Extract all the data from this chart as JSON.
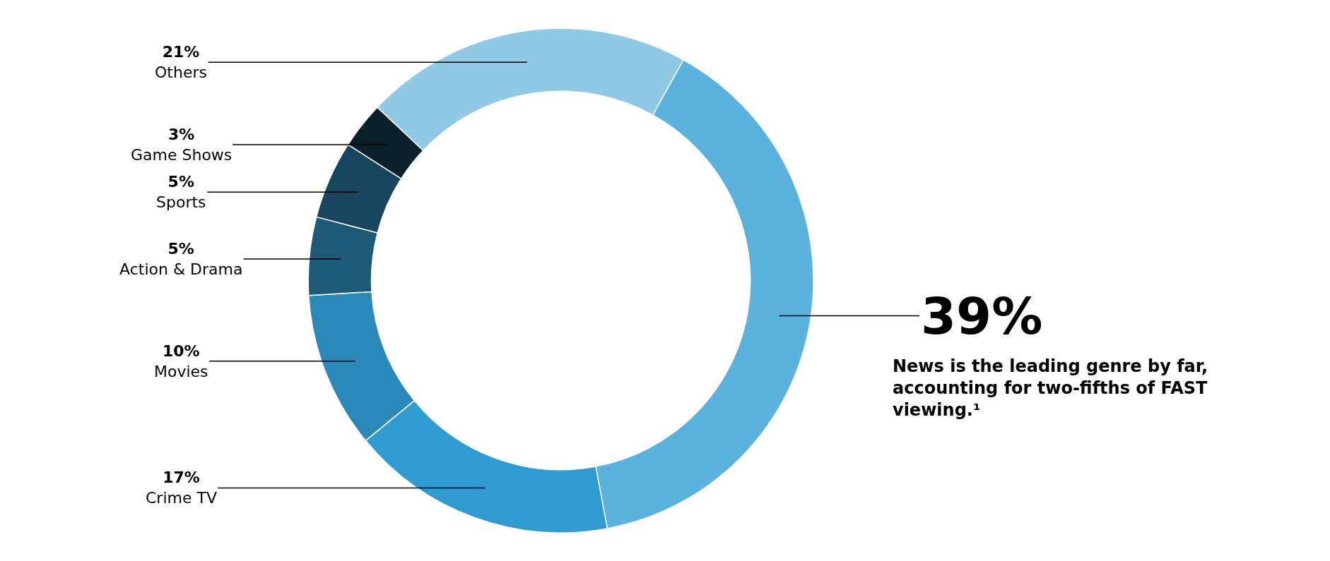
{
  "chart_data": {
    "type": "donut",
    "categories": [
      null,
      "Crime TV",
      "Movies",
      "Action & Drama",
      "Sports",
      "Game Shows",
      "Others"
    ],
    "values": [
      39,
      17,
      10,
      5,
      5,
      3,
      21
    ],
    "value_labels": [
      "39%",
      "17%",
      "10%",
      "5%",
      "5%",
      "3%",
      "21%"
    ],
    "colors": [
      "#5bb2dc",
      "#2f9bd0",
      "#2a89b8",
      "#1d5a78",
      "#17465e",
      "#0a1f2c",
      "#90c9e6"
    ],
    "legend": false,
    "annotations": [
      "News is the leading genre by far, accounting for two-fifths of FAST viewing.¹"
    ]
  }
}
